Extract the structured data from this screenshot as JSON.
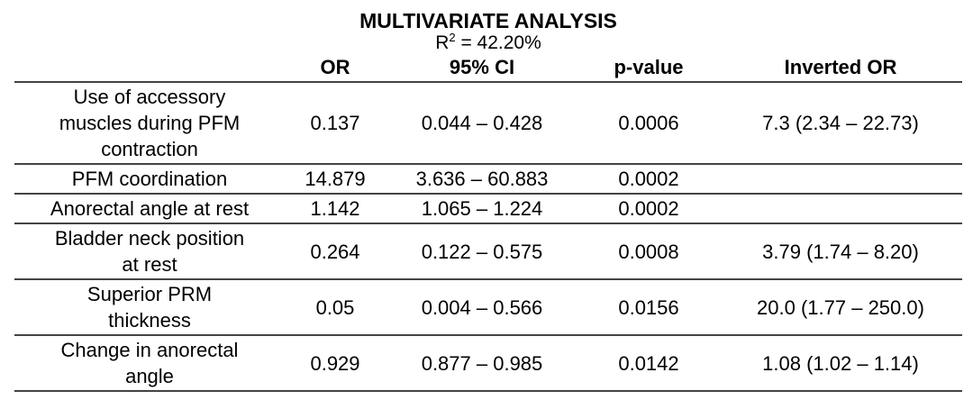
{
  "table": {
    "title": "MULTIVARIATE ANALYSIS",
    "subtitle_base": "R",
    "subtitle_sup": "2",
    "subtitle_rest": " = 42.20%",
    "headers": [
      "",
      "OR",
      "95% CI",
      "p-value",
      "Inverted OR"
    ],
    "rows": [
      {
        "variable_lines": [
          "Use of accessory",
          "muscles during PFM",
          "contraction"
        ],
        "or": "0.137",
        "ci": "0.044 – 0.428",
        "p": "0.0006",
        "inverted_or": "7.3 (2.34 – 22.73)"
      },
      {
        "variable_lines": [
          "PFM coordination"
        ],
        "or": "14.879",
        "ci": "3.636 – 60.883",
        "p": "0.0002",
        "inverted_or": ""
      },
      {
        "variable_lines": [
          "Anorectal angle at rest"
        ],
        "or": "1.142",
        "ci": "1.065 – 1.224",
        "p": "0.0002",
        "inverted_or": ""
      },
      {
        "variable_lines": [
          "Bladder neck position",
          "at rest"
        ],
        "or": "0.264",
        "ci": "0.122 – 0.575",
        "p": "0.0008",
        "inverted_or": "3.79 (1.74 – 8.20)"
      },
      {
        "variable_lines": [
          "Superior PRM",
          "thickness"
        ],
        "or": "0.05",
        "ci": "0.004 – 0.566",
        "p": "0.0156",
        "inverted_or": "20.0 (1.77 – 250.0)"
      },
      {
        "variable_lines": [
          "Change in anorectal",
          "angle"
        ],
        "or": "0.929",
        "ci": "0.877 – 0.985",
        "p": "0.0142",
        "inverted_or": "1.08 (1.02 – 1.14)"
      }
    ]
  }
}
